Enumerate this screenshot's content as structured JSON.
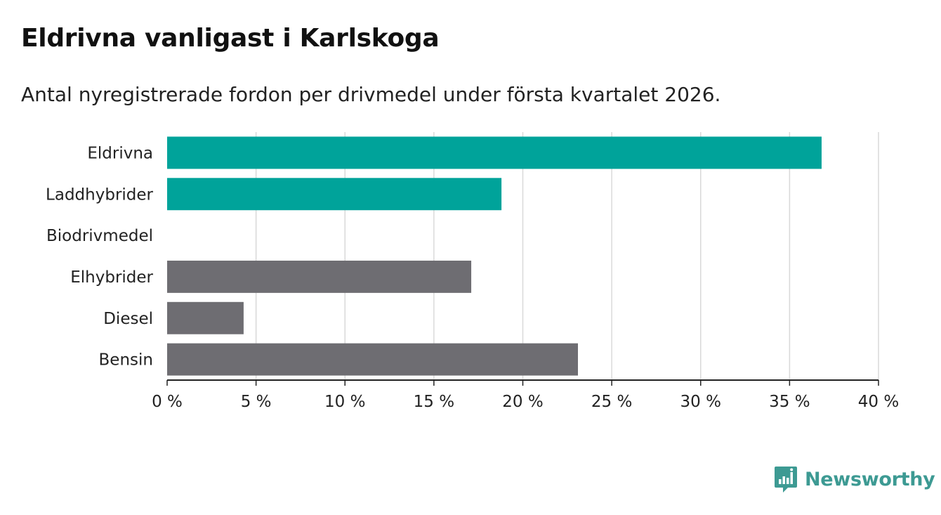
{
  "title": "Eldrivna vanligast i Karlskoga",
  "subtitle": "Antal nyregistrerade fordon per drivmedel under första kvartalet 2026.",
  "brand": "Newsworthy",
  "colors": {
    "highlight": "#00a39a",
    "default": "#6e6d72",
    "grid": "#d9d9d9",
    "axis": "#222222"
  },
  "chart_data": {
    "type": "bar",
    "orientation": "horizontal",
    "categories": [
      "Eldrivna",
      "Laddhybrider",
      "Biodrivmedel",
      "Elhybrider",
      "Diesel",
      "Bensin"
    ],
    "values": [
      36.8,
      18.8,
      0,
      17.1,
      4.3,
      23.1
    ],
    "highlighted": [
      true,
      true,
      true,
      false,
      false,
      false
    ],
    "xlim": [
      0,
      40
    ],
    "xticks": [
      0,
      5,
      10,
      15,
      20,
      25,
      30,
      35,
      40
    ],
    "tick_suffix": " %",
    "grid": true
  }
}
